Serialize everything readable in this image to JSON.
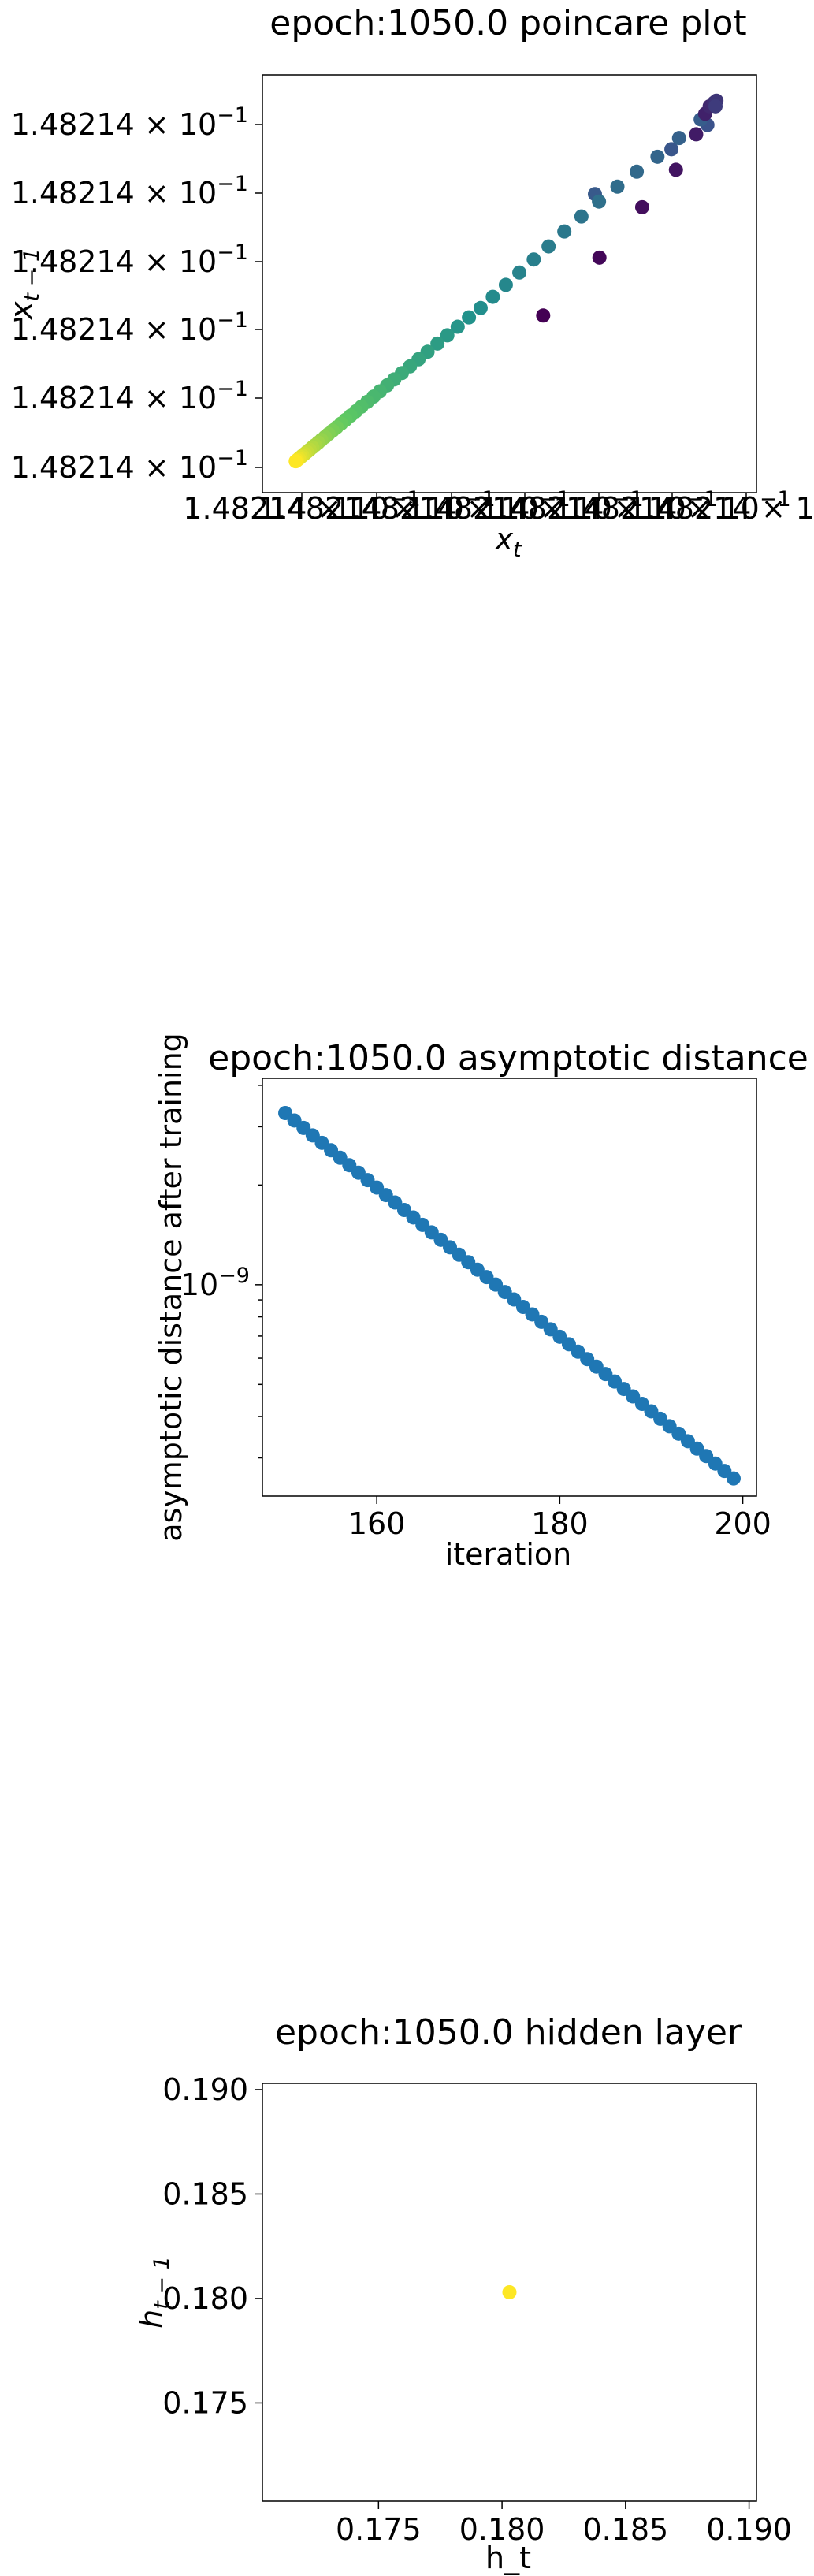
{
  "chart_data": [
    {
      "type": "scatter",
      "title": "epoch:1050.0 poincare plot",
      "xlabel": "x_t",
      "ylabel": "x_{t-1}",
      "x_tick_labels": [
        "1.48214×10^-1",
        "1.48214×10^-1",
        "1.48214×10^-1",
        "1.48214×10^-1",
        "1.48214×10^-1",
        "1.48214×10^-1",
        "1.48214×10^-1"
      ],
      "y_tick_labels": [
        "1.48214×10^-1",
        "1.48214×10^-1",
        "1.48214×10^-1",
        "1.48214×10^-1",
        "1.48214×10^-1",
        "1.48214×10^-1"
      ],
      "colormap": "viridis",
      "note_values": "relative position within an indistinguishable range (all values ≈ 0.148214); x and y in units of the plotted data range",
      "x": [
        0.94,
        0.86,
        0.69,
        0.925,
        0.877,
        0.829,
        0.783,
        0.74,
        0.699,
        0.66,
        0.622,
        0.587,
        0.554,
        0.522,
        0.492,
        0.463,
        0.436,
        0.41,
        0.385,
        0.362,
        0.34,
        0.318,
        0.298,
        0.279,
        0.261,
        0.244,
        0.228,
        0.212,
        0.198,
        0.184,
        0.171,
        0.159,
        0.147,
        0.136,
        0.126,
        0.116,
        0.107,
        0.098,
        0.09,
        0.082,
        0.075,
        0.068,
        0.062,
        0.056,
        0.05,
        0.045,
        0.04,
        0.036,
        0.032,
        0.028,
        0.025
      ],
      "y": [
        0.925,
        0.86,
        0.74,
        0.94,
        0.89,
        0.84,
        0.8,
        0.76,
        0.72,
        0.68,
        0.64,
        0.6,
        0.565,
        0.53,
        0.497,
        0.465,
        0.435,
        0.41,
        0.385,
        0.362,
        0.34,
        0.318,
        0.298,
        0.279,
        0.261,
        0.244,
        0.228,
        0.212,
        0.198,
        0.184,
        0.171,
        0.159,
        0.147,
        0.136,
        0.126,
        0.116,
        0.107,
        0.098,
        0.09,
        0.082,
        0.075,
        0.068,
        0.062,
        0.056,
        0.05,
        0.045,
        0.04,
        0.036,
        0.032,
        0.028,
        0.025
      ],
      "special_points": [
        {
          "x": 0.575,
          "y": 0.415
        },
        {
          "x": 0.7,
          "y": 0.57
        },
        {
          "x": 0.795,
          "y": 0.705
        },
        {
          "x": 0.87,
          "y": 0.805
        },
        {
          "x": 0.915,
          "y": 0.9
        },
        {
          "x": 0.935,
          "y": 0.955
        },
        {
          "x": 0.945,
          "y": 0.975
        },
        {
          "x": 0.955,
          "y": 0.985
        },
        {
          "x": 0.96,
          "y": 0.99
        },
        {
          "x": 0.958,
          "y": 0.975
        }
      ]
    },
    {
      "type": "scatter",
      "title": "epoch:1050.0 asymptotic distance",
      "xlabel": "iteration",
      "ylabel": "asymptotic distance after training",
      "xlim": [
        147.5,
        201.5
      ],
      "y_scale": "log",
      "ylim": [
        2.3e-10,
        4.2e-09
      ],
      "x_ticks": [
        160,
        180,
        200
      ],
      "y_ticks_label": "10^-9",
      "y_tick_value": 1e-09,
      "color": "#1f77b4",
      "x_start": 150,
      "x_end": 199,
      "y_start": 3.3e-09,
      "y_end": 2.6e-10
    },
    {
      "type": "scatter",
      "title": "epoch:1050.0 hidden layer",
      "xlabel": "h_t",
      "ylabel": "h_{t-1}",
      "xlim": [
        0.1703,
        0.1903
      ],
      "ylim": [
        0.1703,
        0.1903
      ],
      "x_ticks": [
        "0.175",
        "0.180",
        "0.185",
        "0.190"
      ],
      "y_ticks": [
        "0.175",
        "0.180",
        "0.185",
        "0.190"
      ],
      "x": [
        0.1803
      ],
      "y": [
        0.1803
      ],
      "color": "#fde725"
    }
  ]
}
